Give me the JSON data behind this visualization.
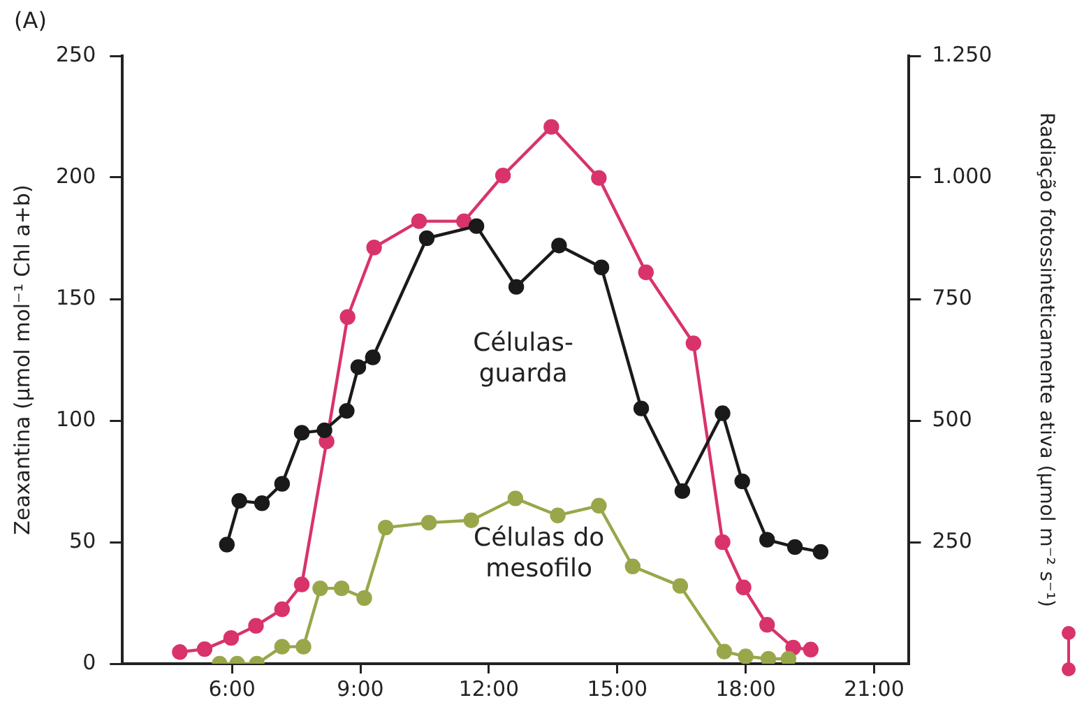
{
  "chart_data": {
    "type": "line",
    "annotations": [
      "(A)"
    ],
    "ylabel": "Zeaxantina (µmol mol⁻¹ Chl a+b)",
    "y2label": "Radiação fotossinteticamente ativa (µmol m⁻² s⁻¹)",
    "xlim": [
      3.44,
      21.8
    ],
    "xticks": [
      {
        "value": 6,
        "label": "6:00"
      },
      {
        "value": 9,
        "label": "9:00"
      },
      {
        "value": 12,
        "label": "12:00"
      },
      {
        "value": 15,
        "label": "15:00"
      },
      {
        "value": 18,
        "label": "18:00"
      },
      {
        "value": 21,
        "label": "21:00"
      }
    ],
    "ylim": [
      0,
      250
    ],
    "yticks": [
      0,
      50,
      100,
      150,
      200,
      250
    ],
    "y2lim": [
      0,
      1250
    ],
    "y2ticks": [
      {
        "value": 250,
        "label": "250"
      },
      {
        "value": 500,
        "label": "500"
      },
      {
        "value": 750,
        "label": "750"
      },
      {
        "value": 1000,
        "label": "1.000"
      },
      {
        "value": 1250,
        "label": "1.250"
      }
    ],
    "grid": false,
    "legend": false,
    "marker": "circle",
    "line_style": "solid",
    "series": [
      {
        "name": "Células-guarda",
        "color": "#1a1a1a",
        "x": [
          5.88,
          6.17,
          6.7,
          7.17,
          7.63,
          8.16,
          8.68,
          8.95,
          9.29,
          10.55,
          11.71,
          12.64,
          13.64,
          14.63,
          15.56,
          16.52,
          17.46,
          17.92,
          18.5,
          19.15,
          19.75
        ],
        "values": [
          49,
          67,
          66,
          74,
          95,
          96,
          104,
          122,
          126,
          175,
          180,
          155,
          172,
          163,
          105,
          71,
          103,
          75,
          51,
          48,
          46
        ]
      },
      {
        "name": "Células do mesofilo",
        "color": "#9aa64a",
        "x": [
          5.71,
          6.12,
          6.58,
          7.17,
          7.67,
          8.06,
          8.56,
          9.09,
          9.59,
          10.6,
          11.59,
          12.62,
          13.61,
          14.57,
          15.36,
          16.47,
          17.5,
          18.0,
          18.53,
          19.0
        ],
        "values": [
          0,
          0,
          0,
          7,
          7,
          31,
          31,
          27,
          56,
          58,
          59,
          68,
          61,
          65,
          40,
          32,
          5,
          3,
          2,
          2
        ]
      },
      {
        "color": "#d9336b",
        "axis": "y2",
        "x": [
          4.78,
          5.36,
          5.98,
          6.56,
          7.17,
          7.63,
          8.21,
          8.7,
          9.32,
          10.37,
          11.42,
          12.33,
          13.46,
          14.57,
          15.67,
          16.78,
          17.46,
          17.95,
          18.5,
          19.11,
          19.52
        ],
        "values": [
          24,
          30,
          53,
          78,
          112,
          163,
          457,
          713,
          856,
          910,
          910,
          1004,
          1104,
          999,
          805,
          659,
          250,
          157,
          80,
          33,
          29
        ]
      }
    ]
  }
}
